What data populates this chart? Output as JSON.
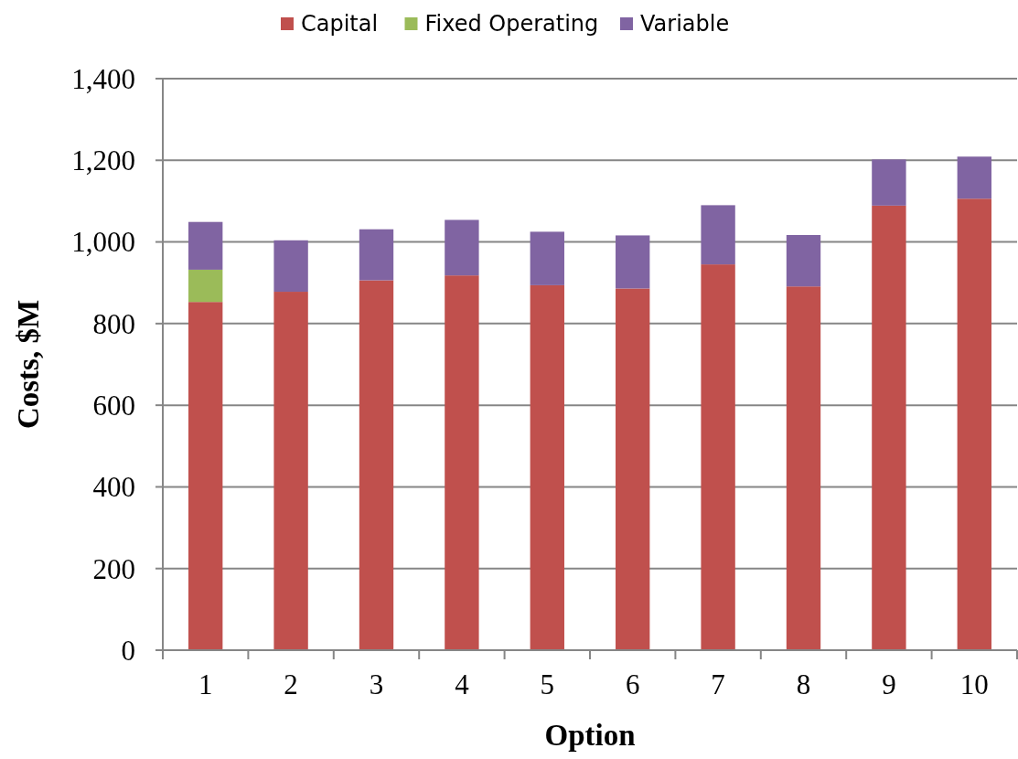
{
  "chart_data": {
    "type": "bar",
    "stacked": true,
    "xlabel": "Option",
    "ylabel": "Costs, $M",
    "categories": [
      "1",
      "2",
      "3",
      "4",
      "5",
      "6",
      "7",
      "8",
      "9",
      "10"
    ],
    "series": [
      {
        "name": "Capital",
        "color": "#c0504d",
        "values": [
          853,
          878,
          906,
          918,
          894,
          886,
          945,
          891,
          1089,
          1106
        ]
      },
      {
        "name": "Fixed Operating",
        "color": "#9bbb59",
        "values": [
          79,
          0,
          0,
          0,
          0,
          0,
          0,
          0,
          0,
          0
        ]
      },
      {
        "name": "Variable",
        "color": "#8064a2",
        "values": [
          117,
          126,
          125,
          136,
          131,
          130,
          145,
          126,
          113,
          103
        ]
      }
    ],
    "ylim": [
      0,
      1400
    ],
    "yticks": [
      {
        "value": 0,
        "label": "0"
      },
      {
        "value": 200,
        "label": "200"
      },
      {
        "value": 400,
        "label": "400"
      },
      {
        "value": 600,
        "label": "600"
      },
      {
        "value": 800,
        "label": "800"
      },
      {
        "value": 1000,
        "label": "1,000"
      },
      {
        "value": 1200,
        "label": "1,200"
      },
      {
        "value": 1400,
        "label": "1,400"
      }
    ],
    "grid": "y",
    "legend": "top"
  }
}
